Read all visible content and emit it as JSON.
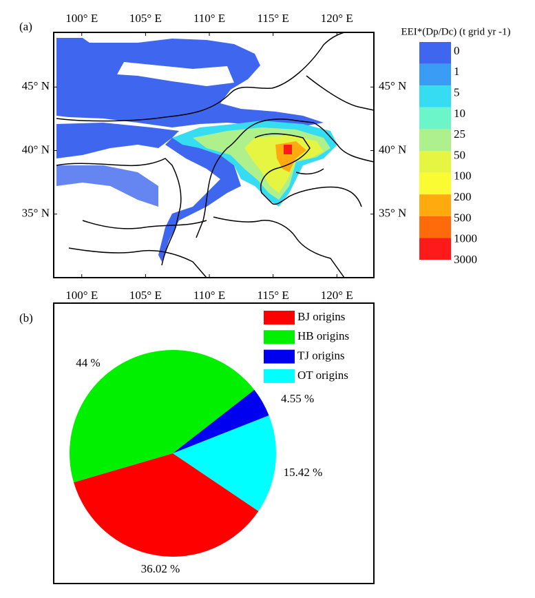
{
  "chart_data": [
    {
      "type": "map",
      "panel_label": "(a)",
      "xlim": [
        97.8,
        122.9
      ],
      "ylim": [
        30.0,
        49.3
      ],
      "xticks": [
        {
          "value": 100,
          "label": "100° E"
        },
        {
          "value": 105,
          "label": "105° E"
        },
        {
          "value": 110,
          "label": "110° E"
        },
        {
          "value": 115,
          "label": "115° E"
        },
        {
          "value": 120,
          "label": "120° E"
        }
      ],
      "yticks": [
        {
          "value": 35,
          "label": "35° N"
        },
        {
          "value": 40,
          "label": "40° N"
        },
        {
          "value": 45,
          "label": "45° N"
        }
      ],
      "colorbar": {
        "title": "EEI*(Dp/Dc) (t grid yr -1)",
        "levels": [
          0,
          1,
          5,
          10,
          25,
          50,
          100,
          200,
          500,
          1000,
          3000
        ],
        "colors": [
          "#3f66ee",
          "#3a9cf5",
          "#35dcf2",
          "#6cf5c8",
          "#aef08c",
          "#e6f542",
          "#fbfb33",
          "#ffab10",
          "#ff6a0a",
          "#ff1a1a"
        ]
      }
    },
    {
      "type": "pie",
      "panel_label": "(b)",
      "categories": [
        "BJ origins",
        "HB origins",
        "TJ origins",
        "OT origins"
      ],
      "values": [
        36.02,
        44,
        4.55,
        15.42
      ],
      "value_labels": [
        "36.02 %",
        "44 %",
        "4.55 %",
        "15.42 %"
      ],
      "colors": [
        "#ff0000",
        "#00f000",
        "#0000f0",
        "#00ffff"
      ]
    }
  ]
}
